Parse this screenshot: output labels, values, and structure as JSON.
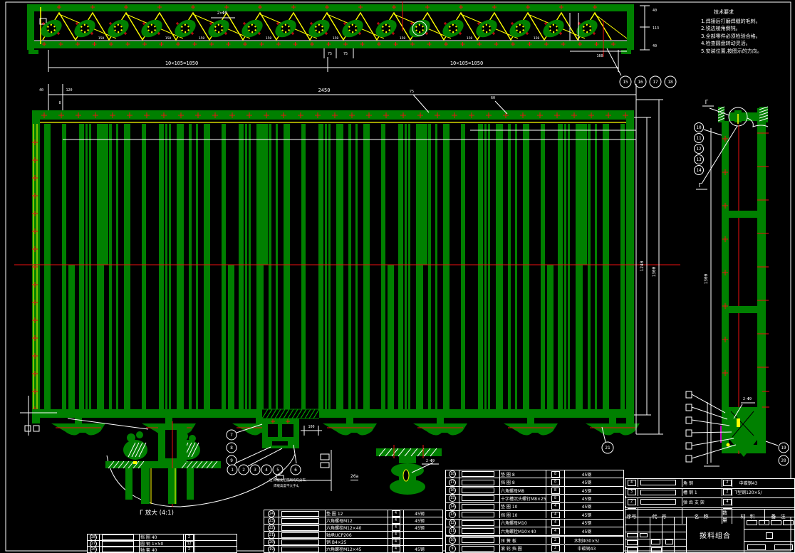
{
  "colors": {
    "background": "#000000",
    "green": "#008000",
    "yellow": "#ffff00",
    "red": "#ee1111",
    "white": "#ffffff",
    "magenta": "#ff00ff"
  },
  "notes": {
    "title": "技术要求",
    "lines": [
      "1.焊接后打磨焊缝的毛刺。",
      "2.锐边棱角倒钝。",
      "3.全部零件必须检验合格。",
      "4.检查圆盘转动灵活。",
      "5.安装位置,按图示的方向。"
    ]
  },
  "labels": {
    "detail_g": "Г 放大 (4:1)",
    "channel": "26a",
    "weld_note_1": "注:焊接处沿圆周均匀分布,",
    "weld_note_2": "焊缝高度不大于4。",
    "section_mark": "Г"
  },
  "dims": {
    "truss_span_left": "10×105=1050",
    "truss_span_right": "10×105=1050",
    "truss_hole": "2×Φ9",
    "truss_tiny": "150",
    "truss_small_a": "75",
    "truss_small_b": "75",
    "truss_end": "160",
    "truss_v1": "40",
    "truss_v2": "113",
    "truss_v3": "40",
    "main_width": "2450",
    "main_small_1": "40",
    "main_small_2": "120",
    "main_small_3": "8",
    "main_lead_1": "75",
    "main_lead_2": "60",
    "main_height": "1240",
    "main_height_overall": "1300",
    "detail_width": "100",
    "mid_phi": "2-Φ9",
    "side_phi": "2-Φ9",
    "side_height": "1300"
  },
  "balloons": {
    "top_row": [
      "15",
      "16",
      "17",
      "18"
    ],
    "side_stack": [
      "10",
      "11",
      "12",
      "13",
      "14"
    ],
    "detail_stack": [
      "7",
      "8",
      "9"
    ],
    "bottom_row": [
      "1",
      "2",
      "3",
      "4",
      "5"
    ],
    "bottom_single": "6",
    "side_bottom_pair": [
      "19",
      "20"
    ],
    "main_bottom": "21"
  },
  "bom_main": {
    "rows": [
      {
        "balloon": "18",
        "name": "垫 圈 8",
        "qty": "8",
        "material": "45钢",
        "remark": ""
      },
      {
        "balloon": "17",
        "name": "挡 圈 8",
        "qty": "8",
        "material": "45钢",
        "remark": ""
      },
      {
        "balloon": "16",
        "name": "六角螺母M8",
        "qty": "8",
        "material": "45钢",
        "remark": ""
      },
      {
        "balloon": "15",
        "name": "十字槽沉头螺钉M8×25",
        "qty": "8",
        "material": "45钢",
        "remark": ""
      },
      {
        "balloon": "14",
        "name": "垫 圈 10",
        "qty": "4",
        "material": "45钢",
        "remark": ""
      },
      {
        "balloon": "13",
        "name": "挡 圈 10",
        "qty": "4",
        "material": "45钢",
        "remark": ""
      },
      {
        "balloon": "12",
        "name": "六角螺母M10",
        "qty": "4",
        "material": "45钢",
        "remark": ""
      },
      {
        "balloon": "11",
        "name": "六角螺栓M10×40",
        "qty": "4",
        "material": "45钢",
        "remark": ""
      },
      {
        "balloon": "",
        "name": "",
        "qty": "",
        "material": "",
        "remark": ""
      },
      {
        "balloon": "10",
        "name": "压 簧 板",
        "qty": "2",
        "material": "木制Φ30×5/",
        "remark": ""
      },
      {
        "balloon": "9",
        "name": "滚 轮 挡 圈",
        "qty": "2",
        "material": "中碳钢43",
        "remark": ""
      }
    ]
  },
  "bom_right": {
    "rows": [
      {
        "no": "4",
        "name": "角 钢",
        "qty": "2",
        "material": "中碳钢43",
        "remark": ""
      },
      {
        "no": "3",
        "name": "槽 钢 1",
        "qty": "2",
        "material": "T型钢120×5/",
        "remark": ""
      },
      {
        "no": "2",
        "name": "弹 齿 支 架",
        "qty": "4",
        "material": "",
        "remark": ""
      },
      {
        "no": "1",
        "name": "弹 齿 组 件",
        "qty": "17",
        "material": "",
        "remark": ""
      }
    ],
    "header": [
      "序号",
      "代 号",
      "名 称",
      "数量",
      "材 料",
      "备 注"
    ]
  },
  "bom_bottom_mid": {
    "rows": [
      {
        "balloon": "24",
        "name": "垫 圈 12",
        "qty": "4",
        "material": "45钢",
        "remark": ""
      },
      {
        "balloon": "23",
        "name": "六角螺母M12",
        "qty": "4",
        "material": "45钢",
        "remark": ""
      },
      {
        "balloon": "22",
        "name": "六角螺栓M12×40",
        "qty": "4",
        "material": "45钢",
        "remark": ""
      },
      {
        "balloon": "21",
        "name": "轴承UCP206",
        "qty": "4",
        "material": "",
        "remark": ""
      },
      {
        "balloon": "20",
        "name": "销 B4×25",
        "qty": "4",
        "material": "",
        "remark": ""
      },
      {
        "balloon": "19",
        "name": "六角螺栓M12×45",
        "qty": "4",
        "material": "45钢",
        "remark": ""
      }
    ]
  },
  "bom_bottom_left": {
    "rows": [
      {
        "balloon": "28",
        "name": "挡 圈 40",
        "qty": "2",
        "material": "",
        "remark": ""
      },
      {
        "balloon": "27",
        "name": "圆 钢 1×50",
        "qty": "12",
        "material": "",
        "remark": ""
      },
      {
        "balloon": "26",
        "name": "轴 套 40",
        "qty": "2",
        "material": "",
        "remark": ""
      }
    ]
  },
  "title_block": {
    "title": "拨料组合"
  }
}
